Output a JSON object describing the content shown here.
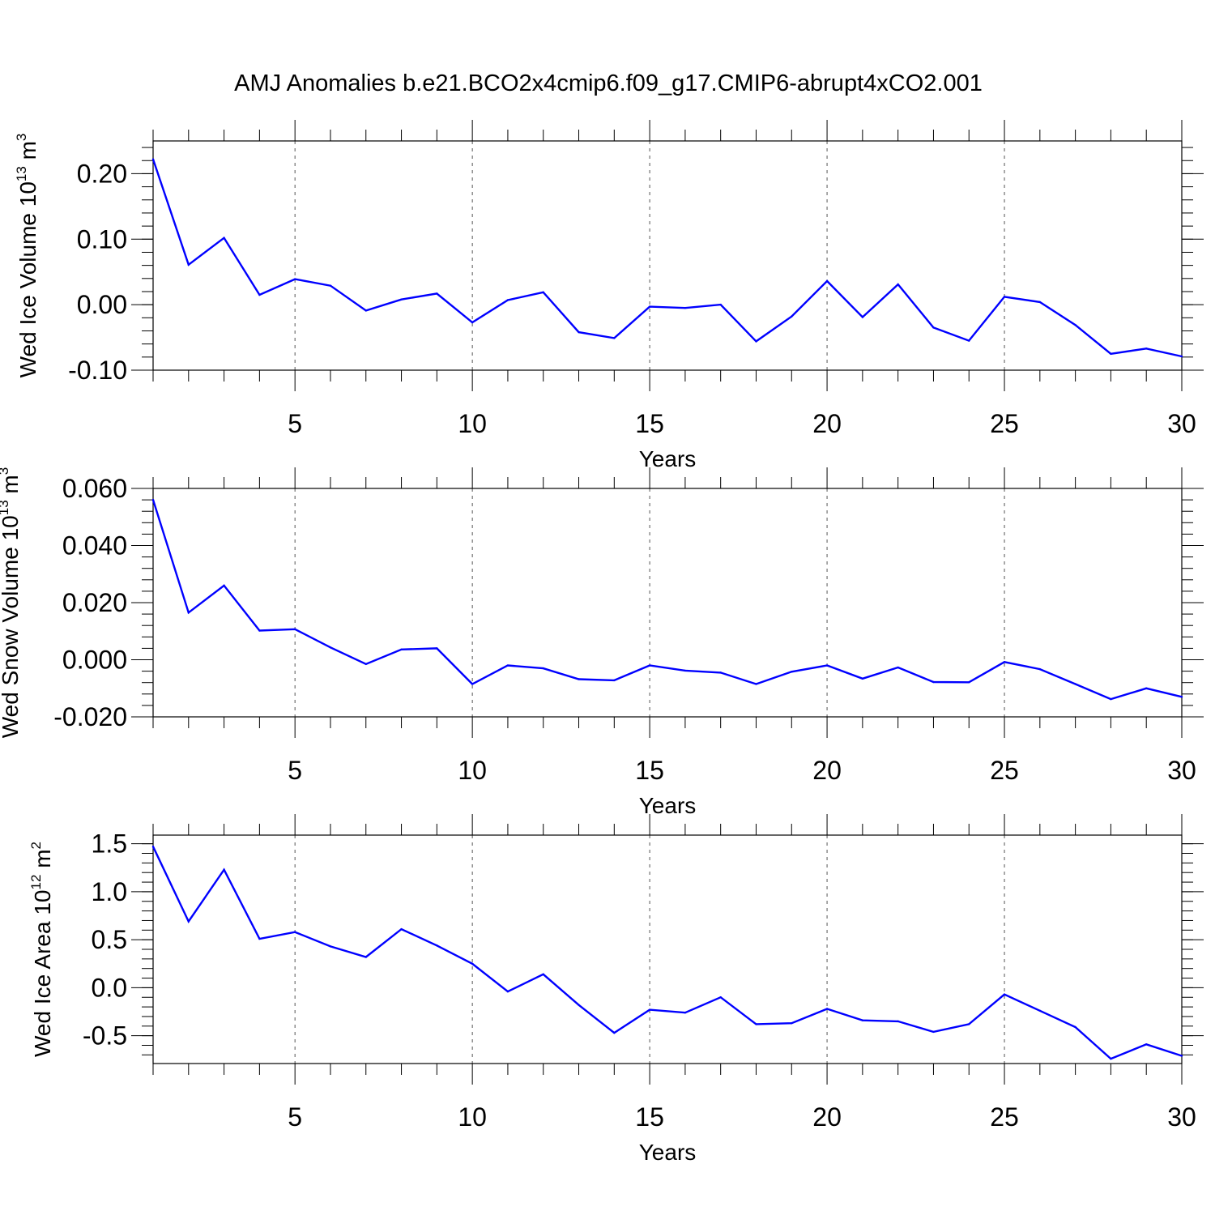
{
  "figure": {
    "title": "AMJ Anomalies b.e21.BCO2x4cmip6.f09_g17.CMIP6-abrupt4xCO2.001",
    "line_color": "#0000ff",
    "grid_color": "#555555"
  },
  "chart_data": [
    {
      "type": "line",
      "xlabel": "Years",
      "ylabel": "Wed Ice Volume 10",
      "ylabel_exp": "13",
      "ylabel_unit": " m",
      "ylabel_unit_exp": "3",
      "xlim": [
        1,
        30
      ],
      "ylim": [
        -0.1,
        0.25
      ],
      "x_major_ticks": [
        5,
        10,
        15,
        20,
        25,
        30
      ],
      "x_tick_labels": [
        "5",
        "10",
        "15",
        "20",
        "25",
        "30"
      ],
      "y_major_ticks": [
        -0.1,
        0.0,
        0.1,
        0.2
      ],
      "y_tick_labels": [
        "-0.10",
        "0.00",
        "0.10",
        "0.20"
      ],
      "y_minor_step": 0.02,
      "grid": "vertical dashed at major x ticks",
      "x": [
        1,
        2,
        3,
        4,
        5,
        6,
        7,
        8,
        9,
        10,
        11,
        12,
        13,
        14,
        15,
        16,
        17,
        18,
        19,
        20,
        21,
        22,
        23,
        24,
        25,
        26,
        27,
        28,
        29,
        30
      ],
      "values": [
        0.222,
        0.061,
        0.102,
        0.015,
        0.039,
        0.029,
        -0.009,
        0.008,
        0.017,
        -0.027,
        0.007,
        0.019,
        -0.042,
        -0.051,
        -0.003,
        -0.005,
        0.0,
        -0.056,
        -0.018,
        0.036,
        -0.019,
        0.031,
        -0.035,
        -0.055,
        0.012,
        0.004,
        -0.031,
        -0.075,
        -0.067,
        -0.079
      ]
    },
    {
      "type": "line",
      "xlabel": "Years",
      "ylabel": "Wed Snow Volume 10",
      "ylabel_exp": "13",
      "ylabel_unit": " m",
      "ylabel_unit_exp": "3",
      "xlim": [
        1,
        30
      ],
      "ylim": [
        -0.02,
        0.06
      ],
      "x_major_ticks": [
        5,
        10,
        15,
        20,
        25,
        30
      ],
      "x_tick_labels": [
        "5",
        "10",
        "15",
        "20",
        "25",
        "30"
      ],
      "y_major_ticks": [
        -0.02,
        0.0,
        0.02,
        0.04,
        0.06
      ],
      "y_tick_labels": [
        "-0.020",
        "0.000",
        "0.020",
        "0.040",
        "0.060"
      ],
      "y_minor_step": 0.004,
      "grid": "vertical dashed at major x ticks",
      "x": [
        1,
        2,
        3,
        4,
        5,
        6,
        7,
        8,
        9,
        10,
        11,
        12,
        13,
        14,
        15,
        16,
        17,
        18,
        19,
        20,
        21,
        22,
        23,
        24,
        25,
        26,
        27,
        28,
        29,
        30
      ],
      "values": [
        0.056,
        0.0165,
        0.026,
        0.0102,
        0.0107,
        0.0043,
        -0.0015,
        0.0036,
        0.004,
        -0.0085,
        -0.002,
        -0.003,
        -0.0068,
        -0.0072,
        -0.002,
        -0.0038,
        -0.0045,
        -0.0085,
        -0.0042,
        -0.002,
        -0.0066,
        -0.0027,
        -0.0078,
        -0.0079,
        -0.0008,
        -0.0033,
        -0.0085,
        -0.0138,
        -0.01,
        -0.013
      ]
    },
    {
      "type": "line",
      "xlabel": "Years",
      "ylabel": "Wed Ice Area 10",
      "ylabel_exp": "12",
      "ylabel_unit": " m",
      "ylabel_unit_exp": "2",
      "xlim": [
        1,
        30
      ],
      "ylim": [
        -0.79,
        1.59
      ],
      "x_major_ticks": [
        5,
        10,
        15,
        20,
        25,
        30
      ],
      "x_tick_labels": [
        "5",
        "10",
        "15",
        "20",
        "25",
        "30"
      ],
      "y_major_ticks": [
        -0.5,
        0.0,
        0.5,
        1.0,
        1.5
      ],
      "y_tick_labels": [
        "-0.5",
        "0.0",
        "0.5",
        "1.0",
        "1.5"
      ],
      "y_minor_step": 0.1,
      "grid": "vertical dashed at major x ticks",
      "x": [
        1,
        2,
        3,
        4,
        5,
        6,
        7,
        8,
        9,
        10,
        11,
        12,
        13,
        14,
        15,
        16,
        17,
        18,
        19,
        20,
        21,
        22,
        23,
        24,
        25,
        26,
        27,
        28,
        29,
        30
      ],
      "values": [
        1.47,
        0.69,
        1.23,
        0.51,
        0.58,
        0.43,
        0.32,
        0.61,
        0.44,
        0.25,
        -0.04,
        0.14,
        -0.18,
        -0.47,
        -0.23,
        -0.26,
        -0.1,
        -0.38,
        -0.37,
        -0.22,
        -0.34,
        -0.35,
        -0.46,
        -0.38,
        -0.07,
        -0.24,
        -0.41,
        -0.74,
        -0.59,
        -0.71
      ]
    }
  ]
}
